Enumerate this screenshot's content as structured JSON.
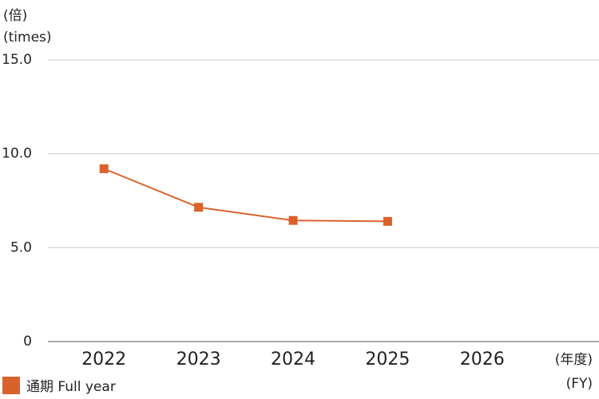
{
  "chart_data": {
    "type": "line",
    "y_unit_labels": [
      "(倍)",
      "(times)"
    ],
    "x_unit_labels": [
      "(年度)",
      "(FY)"
    ],
    "categories": [
      "2022",
      "2023",
      "2024",
      "2025",
      "2026"
    ],
    "series": [
      {
        "name": "通期 Full year",
        "color": "#d9622b",
        "values": [
          9.2,
          7.15,
          6.45,
          6.4,
          null
        ]
      }
    ],
    "ylim": [
      0,
      15
    ],
    "yticks": [
      0,
      {
        "value": 5,
        "label": "5.0"
      },
      {
        "value": 10,
        "label": "10.0"
      },
      {
        "value": 15,
        "label": "15.0"
      }
    ],
    "grid": true,
    "legend": "bottom-left"
  }
}
